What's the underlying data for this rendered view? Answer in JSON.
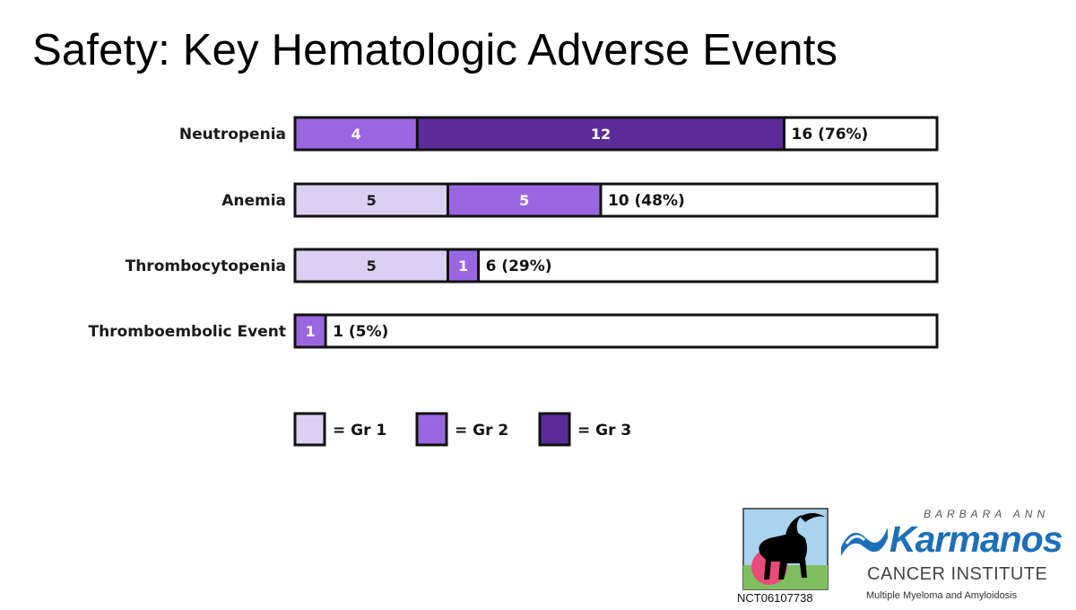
{
  "slide": {
    "title": "Safety: Key Hematologic Adverse Events"
  },
  "chart_data": {
    "type": "bar",
    "orientation": "horizontal",
    "stacked": true,
    "title": "Safety: Key Hematologic Adverse Events",
    "categories": [
      "Neutropenia",
      "Anemia",
      "Thrombocytopenia",
      "Thromboembolic Event"
    ],
    "series": [
      {
        "name": "= Gr 1",
        "color": "#dcd0f2",
        "text_color": "#1a1a1a",
        "values": [
          0,
          5,
          5,
          0
        ]
      },
      {
        "name": "= Gr 2",
        "color": "#9a67e0",
        "text_color": "#ffffff",
        "values": [
          4,
          5,
          1,
          1
        ]
      },
      {
        "name": "= Gr 3",
        "color": "#5b2b99",
        "text_color": "#ffffff",
        "values": [
          12,
          0,
          0,
          0
        ]
      }
    ],
    "totals": [
      "16 (76%)",
      "10 (48%)",
      "6 (29%)",
      "1 (5%)"
    ],
    "xlim": [
      0,
      21
    ],
    "grid": false,
    "legend_position": "bottom"
  },
  "logos": {
    "trial_id": "NCT06107738",
    "institute_top": "BARBARA ANN",
    "institute_name": "Karmanos",
    "institute_sub": "CANCER INSTITUTE",
    "institute_sub2": "Multiple Myeloma and Amyloidosis",
    "colors": {
      "brand_blue": "#1e6fb8",
      "sky": "#a9d3ee",
      "sun": "#e94b7a",
      "ground": "#7fbf60"
    }
  }
}
